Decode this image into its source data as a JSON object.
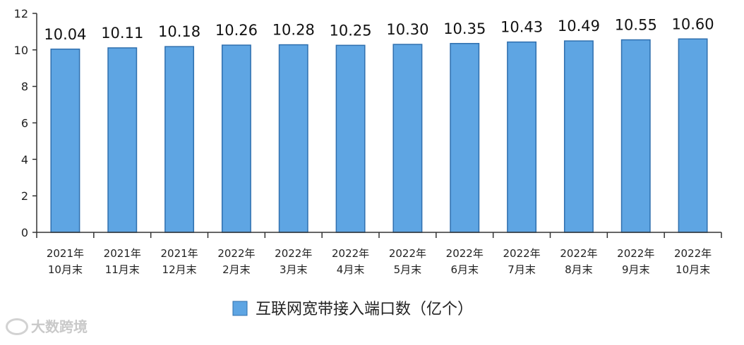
{
  "chart_data": {
    "type": "bar",
    "categories": [
      [
        "2021年",
        "10月末"
      ],
      [
        "2021年",
        "11月末"
      ],
      [
        "2021年",
        "12月末"
      ],
      [
        "2022年",
        "2月末"
      ],
      [
        "2022年",
        "3月末"
      ],
      [
        "2022年",
        "4月末"
      ],
      [
        "2022年",
        "5月末"
      ],
      [
        "2022年",
        "6月末"
      ],
      [
        "2022年",
        "7月末"
      ],
      [
        "2022年",
        "8月末"
      ],
      [
        "2022年",
        "9月末"
      ],
      [
        "2022年",
        "10月末"
      ]
    ],
    "series": [
      {
        "name": "互联网宽带接入端口数（亿个）",
        "values": [
          10.04,
          10.11,
          10.18,
          10.26,
          10.28,
          10.25,
          10.3,
          10.35,
          10.43,
          10.49,
          10.55,
          10.6
        ],
        "color": "#5ea5e3"
      }
    ],
    "data_labels": [
      "10.04",
      "10.11",
      "10.18",
      "10.26",
      "10.28",
      "10.25",
      "10.30",
      "10.35",
      "10.43",
      "10.49",
      "10.55",
      "10.60"
    ],
    "yticks": [
      0,
      2,
      4,
      6,
      8,
      10,
      12
    ],
    "ylim": [
      0,
      12
    ],
    "grid": false,
    "legend_position": "bottom"
  },
  "watermark": {
    "text": "大数跨境"
  },
  "colors": {
    "bar_fill": "#5ea5e3",
    "bar_stroke": "#2f6fae",
    "axis": "#333333"
  }
}
